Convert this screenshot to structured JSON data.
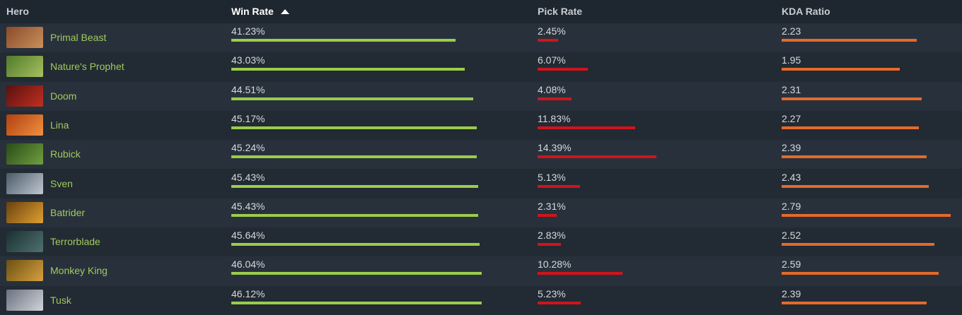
{
  "header": {
    "hero": "Hero",
    "win_rate": "Win Rate",
    "pick_rate": "Pick Rate",
    "kda": "KDA Ratio"
  },
  "table": {
    "rows": [
      {
        "hero": "Primal Beast",
        "win_rate": {
          "value": 41.23,
          "label": "41.23%"
        },
        "pick_rate": {
          "value": 2.45,
          "label": "2.45%"
        },
        "kda": 2.23
      },
      {
        "hero": "Nature's Prophet",
        "win_rate": {
          "value": 43.03,
          "label": "43.03%"
        },
        "pick_rate": {
          "value": 6.07,
          "label": "6.07%"
        },
        "kda": 1.95
      },
      {
        "hero": "Doom",
        "win_rate": {
          "value": 44.51,
          "label": "44.51%"
        },
        "pick_rate": {
          "value": 4.08,
          "label": "4.08%"
        },
        "kda": 2.31
      },
      {
        "hero": "Lina",
        "win_rate": {
          "value": 45.17,
          "label": "45.17%"
        },
        "pick_rate": {
          "value": 11.83,
          "label": "11.83%"
        },
        "kda": 2.27
      },
      {
        "hero": "Rubick",
        "win_rate": {
          "value": 45.24,
          "label": "45.24%"
        },
        "pick_rate": {
          "value": 14.39,
          "label": "14.39%"
        },
        "kda": 2.39
      },
      {
        "hero": "Sven",
        "win_rate": {
          "value": 45.43,
          "label": "45.43%"
        },
        "pick_rate": {
          "value": 5.13,
          "label": "5.13%"
        },
        "kda": 2.43
      },
      {
        "hero": "Batrider",
        "win_rate": {
          "value": 45.43,
          "label": "45.43%"
        },
        "pick_rate": {
          "value": 2.31,
          "label": "2.31%"
        },
        "kda": 2.79
      },
      {
        "hero": "Terrorblade",
        "win_rate": {
          "value": 45.64,
          "label": "45.64%"
        },
        "pick_rate": {
          "value": 2.83,
          "label": "2.83%"
        },
        "kda": 2.52
      },
      {
        "hero": "Monkey King",
        "win_rate": {
          "value": 46.04,
          "label": "46.04%"
        },
        "pick_rate": {
          "value": 10.28,
          "label": "10.28%"
        },
        "kda": 2.59
      },
      {
        "hero": "Tusk",
        "win_rate": {
          "value": 46.12,
          "label": "46.12%"
        },
        "pick_rate": {
          "value": 5.23,
          "label": "5.23%"
        },
        "kda": 2.39
      }
    ]
  }
}
